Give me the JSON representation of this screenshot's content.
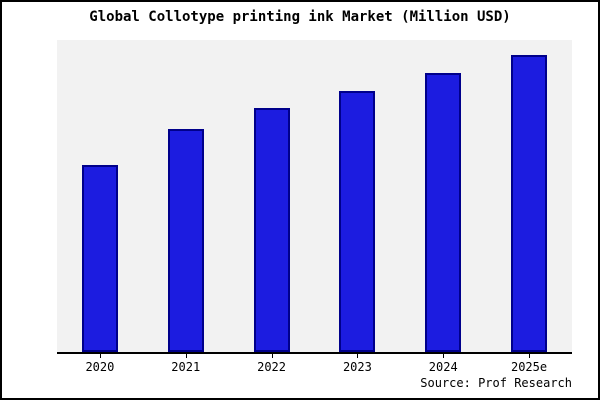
{
  "title": "Global Collotype printing ink Market (Million USD)",
  "source": "Source: Prof Research",
  "chart_data": {
    "type": "bar",
    "title": "Global Collotype printing ink Market (Million USD)",
    "categories": [
      "2020",
      "2021",
      "2022",
      "2023",
      "2024",
      "2025e"
    ],
    "values": [
      63,
      75,
      82,
      88,
      94,
      100
    ],
    "xlabel": "",
    "ylabel": "",
    "ylim": [
      0,
      105
    ],
    "grid": false,
    "legend": "none",
    "bar_color": "#1c1ce0",
    "bar_border_color": "#00008b",
    "plot_background": "#f2f2f2",
    "frame_border_color": "#000000",
    "source_label": "Source: Prof Research"
  }
}
